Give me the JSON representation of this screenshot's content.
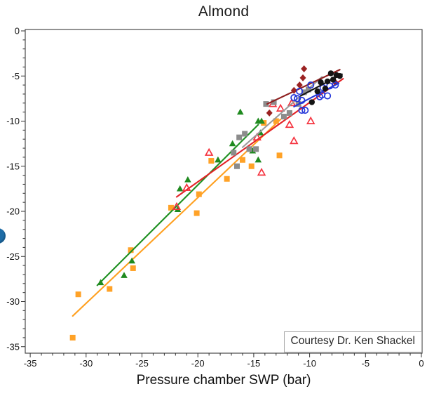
{
  "title": "Almond",
  "annotation": {
    "text": "Courtesy Dr. Ken Shackel"
  },
  "decoration": {
    "edge_partial_circle_color": "#1d6ca6"
  },
  "chart_data": {
    "type": "scatter",
    "title": "Almond",
    "xlabel": "Pressure chamber SWP (bar)",
    "ylabel": "",
    "xlim": [
      -35,
      0
    ],
    "ylim": [
      -35,
      0
    ],
    "grid": false,
    "legend": "none",
    "frame_color": "#4a4a4a",
    "tick_color": "#333333",
    "tick_label_color": "#141414",
    "x_major_ticks": [
      -35,
      -30,
      -25,
      -20,
      -15,
      -10,
      -5,
      0
    ],
    "y_major_ticks": [
      0,
      -5,
      -10,
      -15,
      -20,
      -25,
      -30,
      -35
    ],
    "minor_tick_step": 1,
    "series": [
      {
        "name": "orange-squares",
        "marker": "square",
        "fill_style": "filled",
        "color": "#FFA227",
        "line_color": "#FFA020",
        "trend_line": [
          [
            -31.2,
            -31.6
          ],
          [
            -12.6,
            -9.8
          ]
        ],
        "points": [
          [
            -14.1,
            -10.2
          ],
          [
            -13.0,
            -10.0
          ],
          [
            -12.7,
            -13.8
          ],
          [
            -15.2,
            -15.0
          ],
          [
            -16.0,
            -14.3
          ],
          [
            -17.4,
            -16.4
          ],
          [
            -18.8,
            -14.4
          ],
          [
            -19.9,
            -18.1
          ],
          [
            -20.1,
            -20.2
          ],
          [
            -22.4,
            -19.6
          ],
          [
            -26.0,
            -24.3
          ],
          [
            -25.8,
            -26.3
          ],
          [
            -27.9,
            -28.6
          ],
          [
            -30.7,
            -29.2
          ],
          [
            -31.2,
            -34.0
          ]
        ]
      },
      {
        "name": "green-triangles",
        "marker": "triangle",
        "fill_style": "filled",
        "color": "#1F8A1F",
        "line_color": "#1E9021",
        "trend_line": [
          [
            -29.0,
            -28.2
          ],
          [
            -14.6,
            -10.4
          ]
        ],
        "points": [
          [
            -16.2,
            -9.0
          ],
          [
            -14.6,
            -10.0
          ],
          [
            -14.3,
            -10.0
          ],
          [
            -14.4,
            -11.3
          ],
          [
            -16.9,
            -12.5
          ],
          [
            -15.1,
            -13.3
          ],
          [
            -18.2,
            -14.3
          ],
          [
            -14.6,
            -14.3
          ],
          [
            -20.9,
            -16.5
          ],
          [
            -21.6,
            -17.5
          ],
          [
            -21.8,
            -19.8
          ],
          [
            -25.9,
            -25.5
          ],
          [
            -26.6,
            -27.1
          ],
          [
            -28.7,
            -27.9
          ]
        ]
      },
      {
        "name": "red-open-triangles",
        "marker": "triangle",
        "fill_style": "open",
        "color": "#F5333F",
        "line_color": "#E32226",
        "trend_line": [
          [
            -21.9,
            -18.4
          ],
          [
            -7.0,
            -5.3
          ]
        ],
        "points": [
          [
            -19.0,
            -13.5
          ],
          [
            -21.0,
            -17.4
          ],
          [
            -21.9,
            -19.5
          ],
          [
            -14.7,
            -11.8
          ],
          [
            -14.3,
            -15.7
          ],
          [
            -13.3,
            -8.1
          ],
          [
            -12.6,
            -8.6
          ],
          [
            -11.6,
            -8.0
          ],
          [
            -11.8,
            -10.4
          ],
          [
            -9.9,
            -10.0
          ],
          [
            -11.4,
            -12.2
          ]
        ]
      },
      {
        "name": "gray-squares",
        "marker": "square",
        "fill_style": "filled",
        "color": "#8C8C8C",
        "line_color": "#9A9A9A",
        "trend_line": [
          [
            -16.0,
            -12.9
          ],
          [
            -8.9,
            -5.1
          ]
        ],
        "points": [
          [
            -16.8,
            -13.5
          ],
          [
            -16.5,
            -15.0
          ],
          [
            -16.3,
            -11.8
          ],
          [
            -15.8,
            -11.4
          ],
          [
            -15.4,
            -13.1
          ],
          [
            -14.8,
            -13.1
          ],
          [
            -13.9,
            -8.1
          ],
          [
            -13.2,
            -7.9
          ],
          [
            -12.3,
            -9.5
          ],
          [
            -11.8,
            -9.1
          ],
          [
            -11.0,
            -8.1
          ],
          [
            -10.5,
            -6.8
          ],
          [
            -10.1,
            -6.5
          ]
        ]
      },
      {
        "name": "dark-red-diamonds",
        "marker": "diamond",
        "fill_style": "filled",
        "color": "#9B2222",
        "line_color": "#8E1F1F",
        "trend_line": [
          [
            -13.8,
            -8.1
          ],
          [
            -7.3,
            -4.3
          ]
        ],
        "points": [
          [
            -10.5,
            -4.2
          ],
          [
            -10.6,
            -5.2
          ],
          [
            -10.9,
            -6.0
          ],
          [
            -11.4,
            -6.6
          ],
          [
            -13.6,
            -9.1
          ],
          [
            -7.7,
            -5.7
          ]
        ]
      },
      {
        "name": "blue-open-circles",
        "marker": "circle",
        "fill_style": "open",
        "color": "#2436D9",
        "line_color": "#2436D9",
        "trend_line": [
          [
            -11.4,
            -8.4
          ],
          [
            -7.4,
            -5.8
          ]
        ],
        "points": [
          [
            -9.9,
            -6.0
          ],
          [
            -10.9,
            -6.7
          ],
          [
            -11.4,
            -7.4
          ],
          [
            -11.1,
            -7.5
          ],
          [
            -10.7,
            -7.7
          ],
          [
            -9.1,
            -7.3
          ],
          [
            -8.4,
            -7.2
          ],
          [
            -8.8,
            -6.3
          ],
          [
            -8.2,
            -6.1
          ],
          [
            -7.7,
            -6.0
          ],
          [
            -8.9,
            -7.1
          ],
          [
            -10.7,
            -8.8
          ],
          [
            -10.4,
            -8.8
          ]
        ]
      },
      {
        "name": "black-circles",
        "marker": "circle",
        "fill_style": "filled",
        "color": "#141414",
        "line_color": "#141414",
        "trend_line": [
          [
            -10.8,
            -7.2
          ],
          [
            -7.1,
            -4.8
          ]
        ],
        "points": [
          [
            -9.8,
            -7.9
          ],
          [
            -9.3,
            -6.7
          ],
          [
            -9.0,
            -5.7
          ],
          [
            -8.6,
            -6.4
          ],
          [
            -8.4,
            -5.6
          ],
          [
            -8.1,
            -4.7
          ],
          [
            -7.9,
            -5.4
          ],
          [
            -7.6,
            -4.9
          ],
          [
            -7.3,
            -5.0
          ]
        ]
      }
    ]
  }
}
